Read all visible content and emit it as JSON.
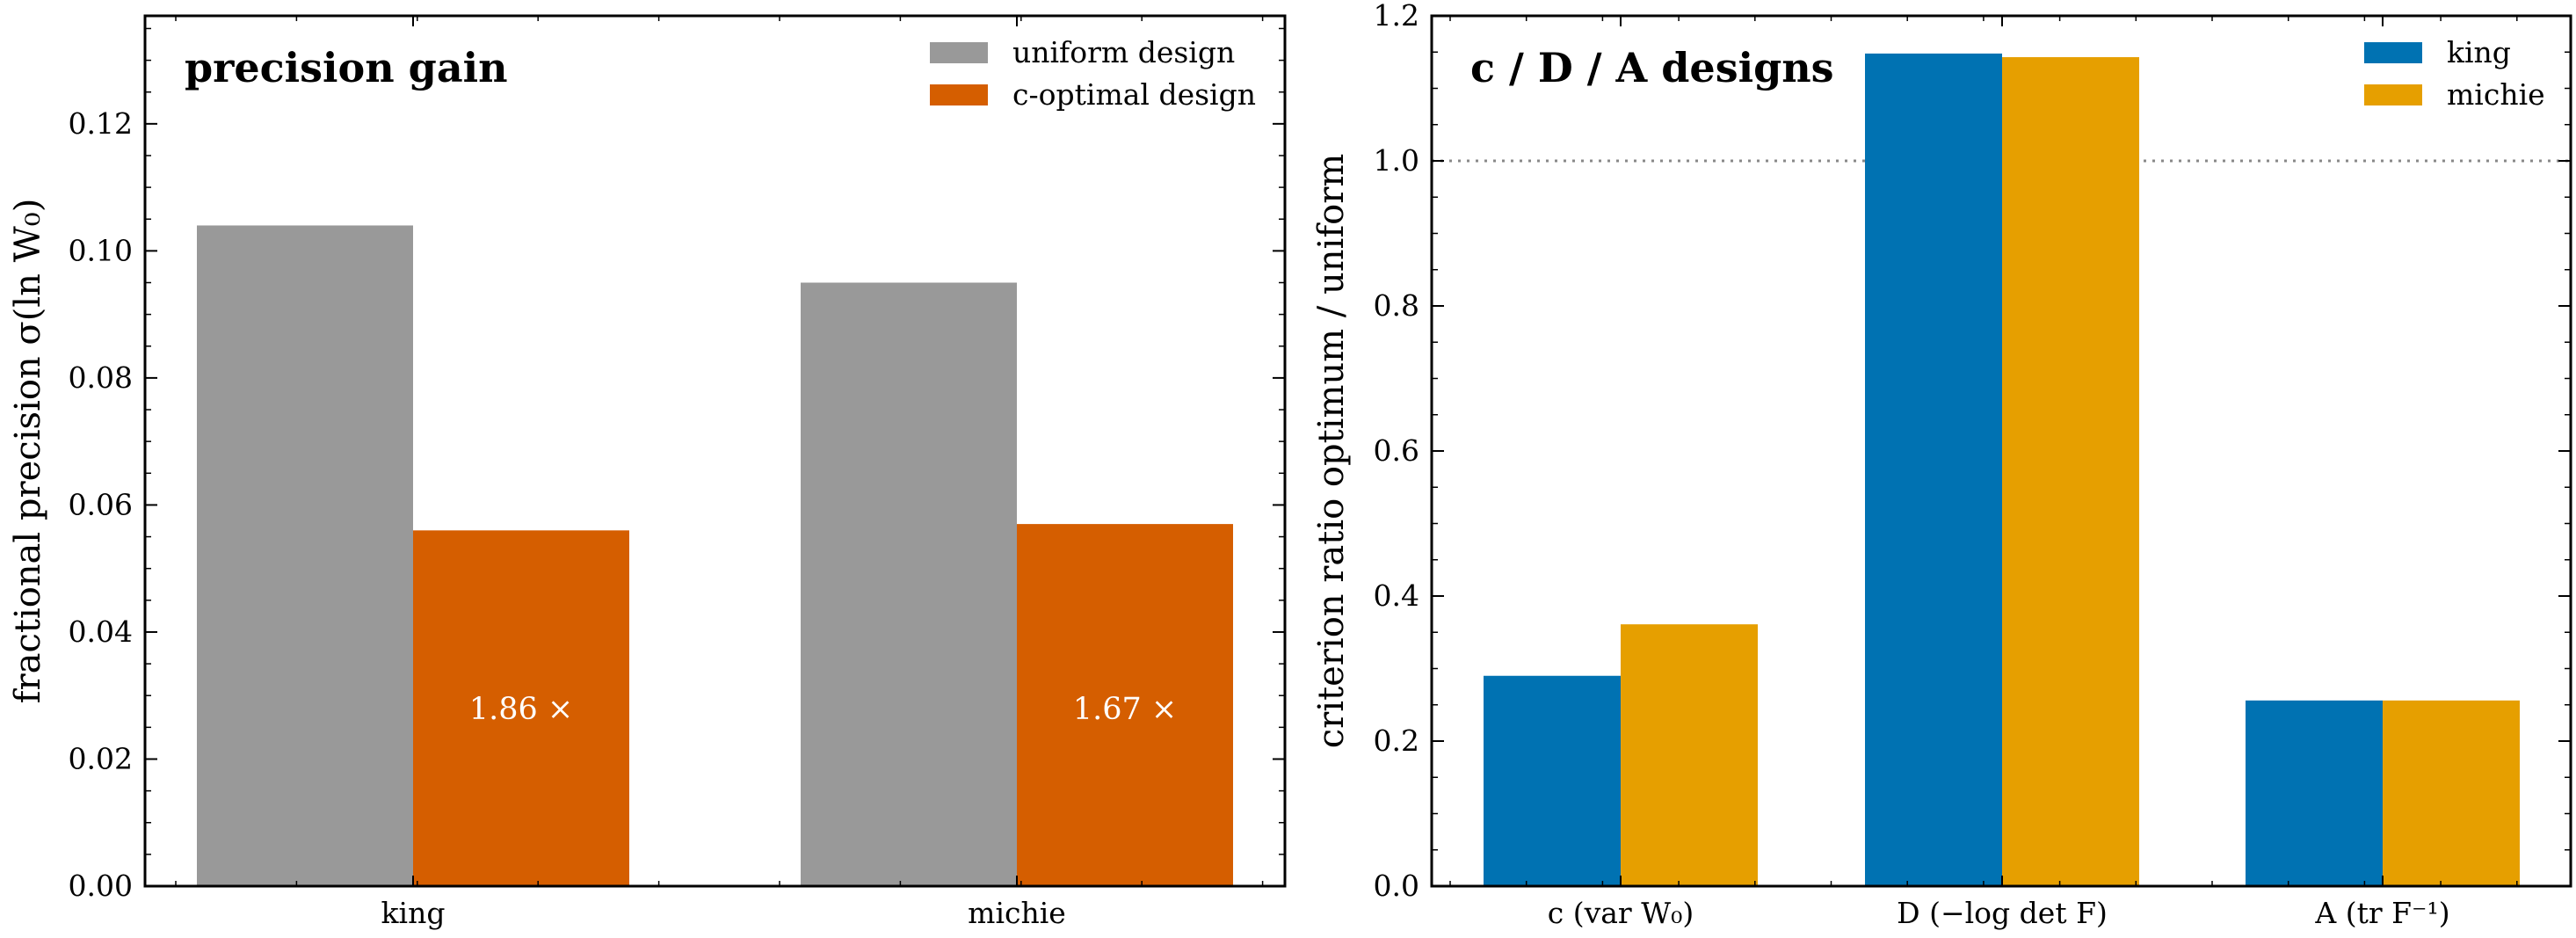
{
  "chart_data": [
    {
      "type": "bar",
      "title": "precision gain",
      "xlabel": "",
      "ylabel": "fractional precision  σ(ln W₀)",
      "ylim": [
        0,
        0.137
      ],
      "yticks": [
        "0.00",
        "0.02",
        "0.04",
        "0.06",
        "0.08",
        "0.10",
        "0.12"
      ],
      "categories": [
        "king",
        "michie"
      ],
      "series": [
        {
          "name": "uniform design",
          "color": "#999999",
          "values": [
            0.104,
            0.095
          ]
        },
        {
          "name": "c-optimal design",
          "color": "#d55e00",
          "values": [
            0.056,
            0.057
          ]
        }
      ],
      "annotations": [
        "1.86 ×",
        "1.67 ×"
      ],
      "legend": "top-right",
      "grid": false
    },
    {
      "type": "bar",
      "title": "c / D / A designs",
      "xlabel": "",
      "ylabel": "criterion ratio  optimum / uniform",
      "ylim": [
        0,
        1.2
      ],
      "yticks": [
        "0.0",
        "0.2",
        "0.4",
        "0.6",
        "0.8",
        "1.0",
        "1.2"
      ],
      "categories": [
        "c  (var W₀)",
        "D  (−log det F)",
        "A  (tr F⁻¹)"
      ],
      "series": [
        {
          "name": "king",
          "color": "#0072b2",
          "values": [
            0.29,
            1.148,
            0.256
          ]
        },
        {
          "name": "michie",
          "color": "#e69f00",
          "values": [
            0.361,
            1.143,
            0.256
          ]
        }
      ],
      "reference_line": 1.0,
      "legend": "top-right",
      "grid": false
    }
  ]
}
